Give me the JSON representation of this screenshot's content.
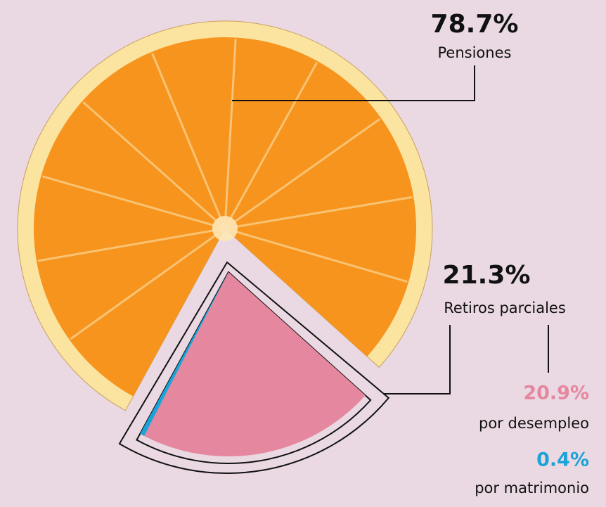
{
  "chart_data": {
    "type": "pie",
    "categories": [
      "Pensiones",
      "Retiros parciales"
    ],
    "values": [
      78.7,
      21.3
    ],
    "value_labels": [
      "78.7%",
      "21.3%"
    ],
    "colors": [
      "#f7941d",
      "#f4a68e"
    ],
    "breakdown": {
      "categories": [
        "por desempleo",
        "por matrimonio"
      ],
      "values": [
        20.9,
        0.4
      ],
      "value_labels": [
        "20.9%",
        "0.4%"
      ],
      "colors": [
        "#e5879f",
        "#1ba3d8"
      ]
    }
  }
}
